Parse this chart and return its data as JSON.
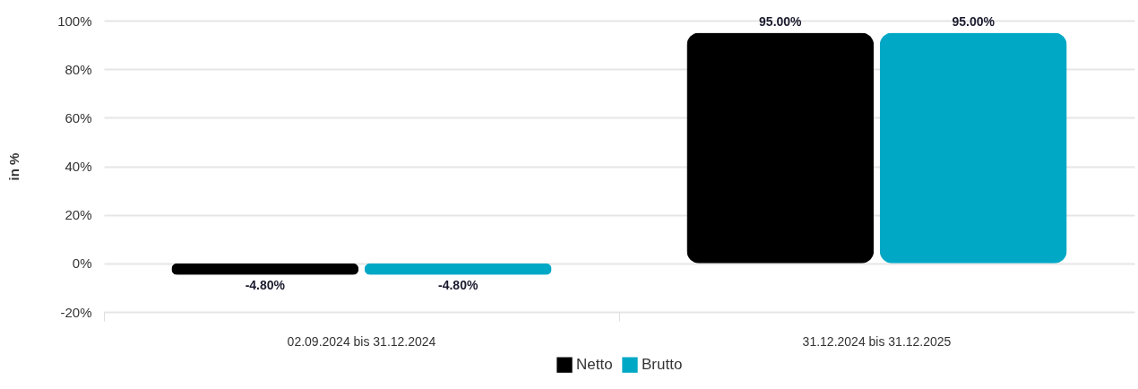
{
  "chart_data": {
    "type": "bar",
    "ylabel": "in %",
    "categories": [
      "02.09.2024 bis 31.12.2024",
      "31.12.2024 bis 31.12.2025"
    ],
    "series": [
      {
        "name": "Netto",
        "color": "#000000",
        "values": [
          -4.8,
          95
        ],
        "value_labels": [
          "-4.80%",
          "95.00%"
        ]
      },
      {
        "name": "Brutto",
        "color": "#00a8c6",
        "values": [
          -4.8,
          95
        ],
        "value_labels": [
          "-4.80%",
          "95.00%"
        ]
      }
    ],
    "ylim": [
      -20,
      100
    ],
    "yticks": [
      {
        "value": -20,
        "label": "-20%"
      },
      {
        "value": 0,
        "label": "0%"
      },
      {
        "value": 20,
        "label": "20%"
      },
      {
        "value": 40,
        "label": "40%"
      },
      {
        "value": 60,
        "label": "60%"
      },
      {
        "value": 80,
        "label": "80%"
      },
      {
        "value": 100,
        "label": "100%"
      }
    ],
    "grid": "y",
    "legend": "bottom"
  }
}
